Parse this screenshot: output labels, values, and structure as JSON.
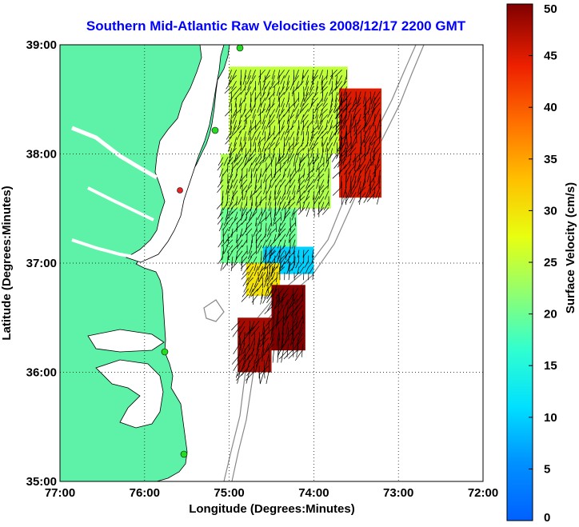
{
  "chart_data": {
    "type": "heatmap",
    "title": "Southern Mid-Atlantic Raw Velocities 2008/12/17 2200 GMT",
    "xlabel": "Longitude (Degrees:Minutes)",
    "ylabel": "Latitude (Degrees:Minutes)",
    "colorbar_label": "Surface Velocity (cm/s)",
    "x_ticks": [
      {
        "value": -77,
        "label": "77:00"
      },
      {
        "value": -76,
        "label": "76:00"
      },
      {
        "value": -75,
        "label": "75:00"
      },
      {
        "value": -74,
        "label": "74:00"
      },
      {
        "value": -73,
        "label": "73:00"
      },
      {
        "value": -72,
        "label": "72:00"
      }
    ],
    "y_ticks": [
      {
        "value": 35,
        "label": "35:00"
      },
      {
        "value": 36,
        "label": "36:00"
      },
      {
        "value": 37,
        "label": "37:00"
      },
      {
        "value": 38,
        "label": "38:00"
      },
      {
        "value": 39,
        "label": "39:00"
      }
    ],
    "xlim": [
      -77,
      -72
    ],
    "ylim": [
      35,
      39
    ],
    "colorbar_ticks": [
      0,
      5,
      10,
      15,
      20,
      25,
      30,
      35,
      40,
      45,
      50
    ],
    "clim": [
      0,
      50
    ],
    "grid": true,
    "colormap": "jet",
    "land_color": "#5ef2a8",
    "station_color": "#22dd22",
    "regions": [
      {
        "lon": [
          -75.0,
          -73.6
        ],
        "lat": [
          38.0,
          38.8
        ],
        "speed": 25
      },
      {
        "lon": [
          -73.7,
          -73.2
        ],
        "lat": [
          37.6,
          38.6
        ],
        "speed": 45
      },
      {
        "lon": [
          -75.1,
          -73.8
        ],
        "lat": [
          37.5,
          38.0
        ],
        "speed": 24
      },
      {
        "lon": [
          -75.1,
          -74.2
        ],
        "lat": [
          37.0,
          37.5
        ],
        "speed": 20
      },
      {
        "lon": [
          -74.6,
          -74.0
        ],
        "lat": [
          36.9,
          37.15
        ],
        "speed": 10
      },
      {
        "lon": [
          -74.8,
          -74.4
        ],
        "lat": [
          36.7,
          37.0
        ],
        "speed": 30
      },
      {
        "lon": [
          -74.5,
          -74.1
        ],
        "lat": [
          36.2,
          36.8
        ],
        "speed": 50
      },
      {
        "lon": [
          -74.9,
          -74.5
        ],
        "lat": [
          36.0,
          36.5
        ],
        "speed": 48
      }
    ]
  }
}
